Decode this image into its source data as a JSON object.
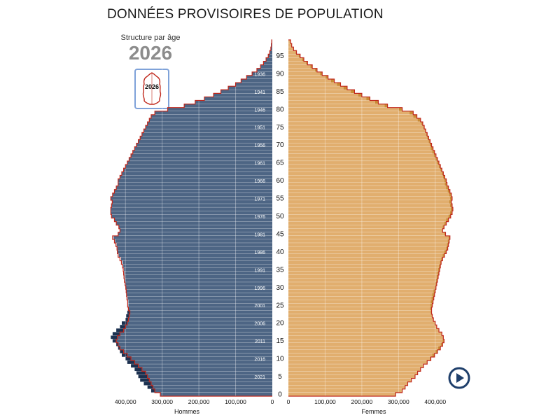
{
  "header": {
    "title": "DONNÉES PROVISOIRES DE POPULATION",
    "subtitle": "Structure par âge",
    "year": "2026",
    "thumbnail_year": "2026"
  },
  "colors": {
    "male_bar": "#4d6584",
    "male_dark": "#1c3150",
    "female_bar": "#e1ae6e",
    "female_dark": "#c98a34",
    "outline": "#c0281c",
    "play_button": "#1f3f6b",
    "thumbnail_border": "#7fa2d9"
  },
  "chart_data": {
    "type": "bar",
    "orientation": "horizontal-population-pyramid",
    "year": 2026,
    "age_range": [
      0,
      99
    ],
    "age_ticks": [
      0,
      5,
      10,
      15,
      20,
      25,
      30,
      35,
      40,
      45,
      50,
      55,
      60,
      65,
      70,
      75,
      80,
      85,
      90,
      95
    ],
    "birth_year_ticks": [
      {
        "age": 5,
        "label": "2021"
      },
      {
        "age": 10,
        "label": "2016"
      },
      {
        "age": 15,
        "label": "2011"
      },
      {
        "age": 20,
        "label": "2006"
      },
      {
        "age": 25,
        "label": "2001"
      },
      {
        "age": 30,
        "label": "1996"
      },
      {
        "age": 35,
        "label": "1991"
      },
      {
        "age": 40,
        "label": "1986"
      },
      {
        "age": 45,
        "label": "1981"
      },
      {
        "age": 50,
        "label": "1976"
      },
      {
        "age": 55,
        "label": "1971"
      },
      {
        "age": 60,
        "label": "1966"
      },
      {
        "age": 65,
        "label": "1961"
      },
      {
        "age": 70,
        "label": "1956"
      },
      {
        "age": 75,
        "label": "1951"
      },
      {
        "age": 80,
        "label": "1946"
      },
      {
        "age": 85,
        "label": "1941"
      },
      {
        "age": 90,
        "label": "1936"
      }
    ],
    "x_max": 450000,
    "x_ticks": [
      0,
      100000,
      200000,
      300000,
      400000
    ],
    "x_tick_labels": [
      "0",
      "100,000",
      "200,000",
      "300,000",
      "400,000"
    ],
    "male_label": "Hommes",
    "female_label": "Femmes",
    "series": [
      {
        "name": "Hommes",
        "values": [
          305000,
          330000,
          340000,
          350000,
          360000,
          365000,
          370000,
          375000,
          385000,
          395000,
          400000,
          410000,
          415000,
          420000,
          425000,
          435000,
          440000,
          435000,
          425000,
          415000,
          410000,
          400000,
          398000,
          395000,
          393000,
          392000,
          392000,
          394000,
          396000,
          398000,
          400000,
          400000,
          401000,
          402000,
          403000,
          404000,
          406000,
          408000,
          412000,
          418000,
          422000,
          422000,
          424000,
          428000,
          432000,
          420000,
          415000,
          418000,
          425000,
          430000,
          438000,
          440000,
          440000,
          438000,
          436000,
          440000,
          435000,
          430000,
          425000,
          420000,
          420000,
          415000,
          410000,
          405000,
          400000,
          395000,
          390000,
          385000,
          380000,
          375000,
          370000,
          365000,
          360000,
          355000,
          350000,
          345000,
          340000,
          335000,
          330000,
          320000,
          285000,
          240000,
          210000,
          185000,
          160000,
          140000,
          120000,
          100000,
          85000,
          70000,
          55000,
          42000,
          32000,
          24000,
          17000,
          11000,
          7000,
          4000,
          2500,
          1500
        ]
      },
      {
        "name": "Femmes",
        "values": [
          290000,
          310000,
          325000,
          335000,
          345000,
          352000,
          357000,
          362000,
          370000,
          378000,
          385000,
          392000,
          400000,
          408000,
          415000,
          420000,
          423000,
          420000,
          412000,
          405000,
          400000,
          394000,
          390000,
          388000,
          386000,
          387000,
          388000,
          390000,
          392000,
          395000,
          398000,
          400000,
          402000,
          404000,
          406000,
          408000,
          410000,
          413000,
          416000,
          420000,
          425000,
          430000,
          432000,
          434000,
          436000,
          425000,
          418000,
          420000,
          425000,
          430000,
          436000,
          440000,
          442000,
          440000,
          438000,
          440000,
          438000,
          434000,
          430000,
          426000,
          425000,
          421000,
          418000,
          414000,
          410000,
          405000,
          400000,
          396000,
          392000,
          388000,
          385000,
          382000,
          378000,
          375000,
          372000,
          368000,
          362000,
          352000,
          340000,
          330000,
          300000,
          262000,
          236000,
          212000,
          190000,
          170000,
          150000,
          132000,
          116000,
          100000,
          86000,
          72000,
          60000,
          48000,
          37000,
          28000,
          20000,
          13000,
          8000,
          5000
        ]
      }
    ],
    "outline_series": [
      {
        "name": "Hommes",
        "values": [
          305000,
          320000,
          325000,
          330000,
          335000,
          340000,
          345000,
          355000,
          365000,
          375000,
          385000,
          395000,
          405000,
          415000,
          420000,
          425000,
          422000,
          415000,
          405000,
          400000,
          395000,
          392000,
          390000,
          388000,
          392000,
          394000,
          394000,
          396000,
          397000,
          398000,
          399000,
          401000,
          403000,
          404000,
          405000,
          406000,
          408000,
          411000,
          415000,
          420000,
          422000,
          423000,
          426000,
          430000,
          435000,
          420000,
          415000,
          418000,
          425000,
          430000,
          438000,
          440000,
          440000,
          438000,
          436000,
          440000,
          435000,
          430000,
          425000,
          420000,
          420000,
          415000,
          410000,
          405000,
          400000,
          395000,
          390000,
          385000,
          380000,
          375000,
          370000,
          365000,
          360000,
          355000,
          350000,
          345000,
          340000,
          335000,
          330000,
          320000,
          285000,
          240000,
          210000,
          185000,
          160000,
          140000,
          120000,
          100000,
          85000,
          70000,
          55000,
          42000,
          32000,
          24000,
          17000,
          11000,
          7000,
          4000,
          2500,
          1500
        ]
      },
      {
        "name": "Femmes",
        "values": [
          292000,
          310000,
          318000,
          325000,
          335000,
          345000,
          352000,
          360000,
          368000,
          378000,
          388000,
          398000,
          406000,
          414000,
          420000,
          424000,
          422000,
          418000,
          410000,
          404000,
          400000,
          395000,
          392000,
          390000,
          390000,
          392000,
          394000,
          396000,
          398000,
          400000,
          402000,
          404000,
          406000,
          408000,
          410000,
          412000,
          414000,
          416000,
          420000,
          425000,
          430000,
          434000,
          436000,
          438000,
          440000,
          428000,
          420000,
          424000,
          430000,
          436000,
          442000,
          446000,
          448000,
          446000,
          444000,
          446000,
          444000,
          440000,
          436000,
          432000,
          430000,
          426000,
          422000,
          418000,
          414000,
          410000,
          406000,
          402000,
          398000,
          394000,
          390000,
          386000,
          382000,
          378000,
          374000,
          370000,
          366000,
          360000,
          350000,
          340000,
          310000,
          270000,
          245000,
          222000,
          200000,
          180000,
          160000,
          142000,
          125000,
          108000,
          92000,
          78000,
          65000,
          52000,
          42000,
          32000,
          22000,
          14000,
          9000,
          6000
        ]
      }
    ]
  }
}
